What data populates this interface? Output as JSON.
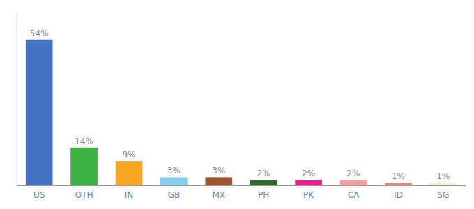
{
  "chart_data": {
    "type": "bar",
    "categories": [
      "US",
      "OTH",
      "IN",
      "GB",
      "MX",
      "PH",
      "PK",
      "CA",
      "ID",
      "SG"
    ],
    "values": [
      54,
      14,
      9,
      3,
      3,
      2,
      2,
      2,
      1,
      1
    ],
    "value_labels": [
      "54%",
      "14%",
      "9%",
      "3%",
      "3%",
      "2%",
      "2%",
      "2%",
      "1%",
      "1%"
    ],
    "colors": [
      "#4472c4",
      "#3cb043",
      "#f5a623",
      "#87ceeb",
      "#a0522d",
      "#2e6b2e",
      "#e91e8c",
      "#f4a0a0",
      "#f08080",
      "#f5f0d8"
    ],
    "ylim": [
      0,
      64
    ],
    "grid": false,
    "data_labels": true,
    "tick_labels": "x"
  }
}
